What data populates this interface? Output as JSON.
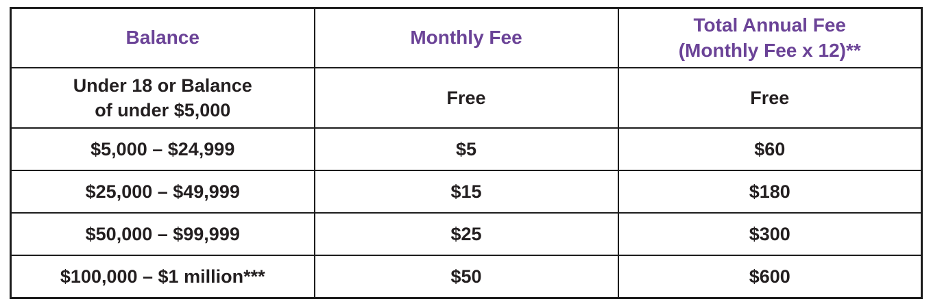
{
  "colors": {
    "header_text": "#6b4397",
    "body_text": "#231f20",
    "border": "#1c1c1c",
    "background": "#ffffff"
  },
  "table": {
    "columns": [
      "Balance",
      "Monthly Fee",
      "Total Annual Fee\n(Monthly Fee x 12)**"
    ],
    "rows": [
      [
        "Under 18 or Balance\nof under $5,000",
        "Free",
        "Free"
      ],
      [
        "$5,000 – $24,999",
        "$5",
        "$60"
      ],
      [
        "$25,000 – $49,999",
        "$15",
        "$180"
      ],
      [
        "$50,000 – $99,999",
        "$25",
        "$300"
      ],
      [
        "$100,000 – $1 million***",
        "$50",
        "$600"
      ]
    ]
  }
}
